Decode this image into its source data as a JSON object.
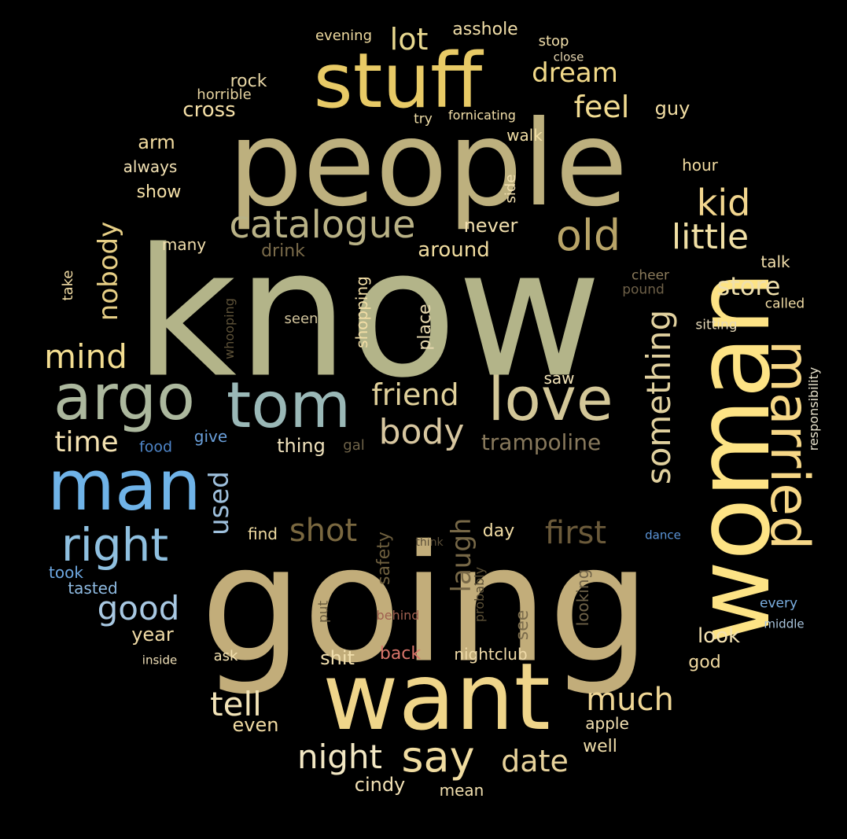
{
  "words": [
    {
      "text": "know",
      "color": "#b3b489"
    },
    {
      "text": "going",
      "color": "#c2ad7a"
    },
    {
      "text": "people",
      "color": "#bdb07e"
    },
    {
      "text": "woman",
      "color": "#fde385"
    },
    {
      "text": "want",
      "color": "#efd58a"
    },
    {
      "text": "stuff",
      "color": "#e8ca66"
    },
    {
      "text": "married",
      "color": "#f6d787"
    },
    {
      "text": "man",
      "color": "#6fb3e8"
    },
    {
      "text": "argo",
      "color": "#acb89e"
    },
    {
      "text": "tom",
      "color": "#9ab8b7"
    },
    {
      "text": "love",
      "color": "#d3c798"
    },
    {
      "text": "catalogue",
      "color": "#b9b286"
    },
    {
      "text": "right",
      "color": "#8fc0e0"
    },
    {
      "text": "old",
      "color": "#b8a468"
    },
    {
      "text": "something",
      "color": "#e1d19f"
    },
    {
      "text": "say",
      "color": "#f0dca1"
    },
    {
      "text": "little",
      "color": "#f1e0a5"
    },
    {
      "text": "kid",
      "color": "#f2d68e"
    },
    {
      "text": "body",
      "color": "#d8c7a0"
    },
    {
      "text": "friend",
      "color": "#e0d09a"
    },
    {
      "text": "first",
      "color": "#6b5a3a"
    },
    {
      "text": "shot",
      "color": "#7a6840"
    },
    {
      "text": "night",
      "color": "#f3e8c4"
    },
    {
      "text": "date",
      "color": "#e7d29b"
    },
    {
      "text": "much",
      "color": "#f0d796"
    },
    {
      "text": "good",
      "color": "#a8c8e2"
    },
    {
      "text": "tell",
      "color": "#f3e4b8"
    },
    {
      "text": "lot",
      "color": "#e8d88f"
    },
    {
      "text": "dream",
      "color": "#f1d989"
    },
    {
      "text": "feel",
      "color": "#f2dc92"
    },
    {
      "text": "mind",
      "color": "#f3dd91"
    },
    {
      "text": "time",
      "color": "#f4e2b1"
    },
    {
      "text": "nobody",
      "color": "#e7cf86"
    },
    {
      "text": "used",
      "color": "#9fc1de"
    },
    {
      "text": "laugh",
      "color": "#776847"
    },
    {
      "text": "store",
      "color": "#f0e0ac"
    },
    {
      "text": "trampoline",
      "color": "#88795c"
    },
    {
      "text": "cross",
      "color": "#f4dfa7"
    },
    {
      "text": "asshole",
      "color": "#f2dfa9"
    },
    {
      "text": "evening",
      "color": "#f0dba0"
    },
    {
      "text": "stop",
      "color": "#f2dfaa"
    },
    {
      "text": "close",
      "color": "#e6d6b0"
    },
    {
      "text": "rock",
      "color": "#e8d7a6"
    },
    {
      "text": "horrible",
      "color": "#e6d3a0"
    },
    {
      "text": "guy",
      "color": "#f3dea4"
    },
    {
      "text": "try",
      "color": "#f1dfa8"
    },
    {
      "text": "fornicating",
      "color": "#f4e0aa"
    },
    {
      "text": "walk",
      "color": "#f2dfa6"
    },
    {
      "text": "arm",
      "color": "#f3dca0"
    },
    {
      "text": "always",
      "color": "#f3e2b4"
    },
    {
      "text": "hour",
      "color": "#f2dca2"
    },
    {
      "text": "show",
      "color": "#f5e1a8"
    },
    {
      "text": "side",
      "color": "#f2e0b0"
    },
    {
      "text": "never",
      "color": "#f1dfae"
    },
    {
      "text": "many",
      "color": "#f2dfae"
    },
    {
      "text": "drink",
      "color": "#7a6b4a"
    },
    {
      "text": "around",
      "color": "#f1dda0"
    },
    {
      "text": "talk",
      "color": "#f2dfac"
    },
    {
      "text": "take",
      "color": "#f1dba3"
    },
    {
      "text": "cheer",
      "color": "#8a7a5a"
    },
    {
      "text": "pound",
      "color": "#6e6048"
    },
    {
      "text": "called",
      "color": "#f0dba4"
    },
    {
      "text": "shopping",
      "color": "#f2dea6"
    },
    {
      "text": "place",
      "color": "#e6d7ae"
    },
    {
      "text": "whooping",
      "color": "#5e5238"
    },
    {
      "text": "seen",
      "color": "#d2c49c"
    },
    {
      "text": "sitting",
      "color": "#e6d9b8"
    },
    {
      "text": "responsibility",
      "color": "#e8e2cc"
    },
    {
      "text": "saw",
      "color": "#f3e4b8"
    },
    {
      "text": "food",
      "color": "#4f86c9"
    },
    {
      "text": "give",
      "color": "#6a9fda"
    },
    {
      "text": "thing",
      "color": "#f0e2bc"
    },
    {
      "text": "gal",
      "color": "#6f6348"
    },
    {
      "text": "find",
      "color": "#f0dca2"
    },
    {
      "text": "day",
      "color": "#f1dca4"
    },
    {
      "text": "safety",
      "color": "#6e5f3e"
    },
    {
      "text": "think",
      "color": "#5a4e38"
    },
    {
      "text": "dance",
      "color": "#5b95d8"
    },
    {
      "text": "took",
      "color": "#6ea8e2"
    },
    {
      "text": "tasted",
      "color": "#8fbbe2"
    },
    {
      "text": "put",
      "color": "#6a5c3f"
    },
    {
      "text": "probably",
      "color": "#5d5136"
    },
    {
      "text": "behind",
      "color": "#a06050"
    },
    {
      "text": "looking",
      "color": "#6f6248"
    },
    {
      "text": "see",
      "color": "#7b6c4c"
    },
    {
      "text": "every",
      "color": "#7aaee0"
    },
    {
      "text": "middle",
      "color": "#a9c4dc"
    },
    {
      "text": "year",
      "color": "#f0dba6"
    },
    {
      "text": "look",
      "color": "#f3e2b2"
    },
    {
      "text": "inside",
      "color": "#f0e0b8"
    },
    {
      "text": "ask",
      "color": "#f3e1b0"
    },
    {
      "text": "shit",
      "color": "#f1dfae"
    },
    {
      "text": "back",
      "color": "#d9756a"
    },
    {
      "text": "nightclub",
      "color": "#f0dba8"
    },
    {
      "text": "god",
      "color": "#f2dba2"
    },
    {
      "text": "even",
      "color": "#f2dca4"
    },
    {
      "text": "apple",
      "color": "#f3e1b2"
    },
    {
      "text": "well",
      "color": "#f0deaa"
    },
    {
      "text": "cindy",
      "color": "#f3e2b6"
    },
    {
      "text": "mean",
      "color": "#f1dfae"
    }
  ]
}
